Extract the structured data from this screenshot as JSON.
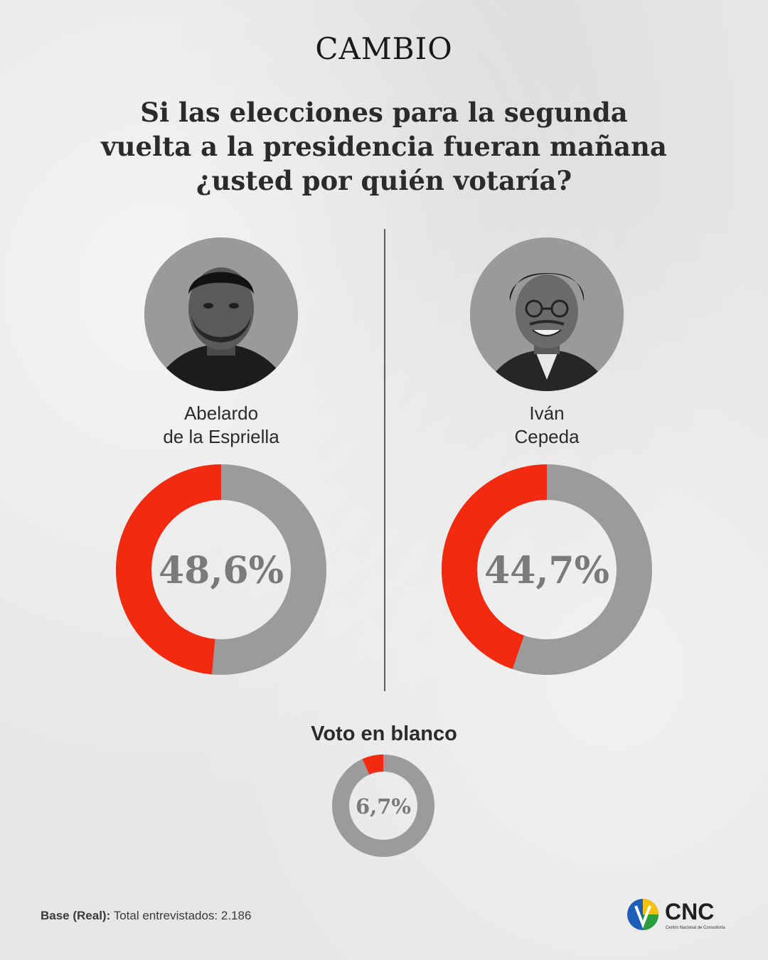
{
  "brand": {
    "name": "CAMBIO"
  },
  "question": "Si las elecciones para la segunda vuelta a la presidencia fueran mañana ¿usted por quién votaría?",
  "colors": {
    "accent": "#f32a10",
    "remainder": "#9b9b9b",
    "inner": "#e6e6e6",
    "label": "#7a7a7a"
  },
  "candidates": [
    {
      "name_line1": "Abelardo",
      "name_line2": "de la Espriella",
      "value_label": "48,6%"
    },
    {
      "name_line1": "Iván",
      "name_line2": "Cepeda",
      "value_label": "44,7%"
    }
  ],
  "blank_vote": {
    "title": "Voto en blanco",
    "value_label": "6,7%"
  },
  "chart_data": [
    {
      "type": "pie",
      "categories": [
        "Abelardo de la Espriella"
      ],
      "values": [
        48.6
      ],
      "unit": "%",
      "total": 100
    },
    {
      "type": "pie",
      "categories": [
        "Iván Cepeda"
      ],
      "values": [
        44.7
      ],
      "unit": "%",
      "total": 100
    },
    {
      "type": "pie",
      "categories": [
        "Voto en blanco"
      ],
      "values": [
        6.7
      ],
      "unit": "%",
      "total": 100
    }
  ],
  "footer": {
    "base_label": "Base (Real):",
    "base_text": "Total entrevistados: 2.186"
  },
  "cnc_logo": {
    "name": "CNC",
    "subtitle": "Centro Nacional de Consultoría",
    "icon": "cnc-logo-icon"
  }
}
